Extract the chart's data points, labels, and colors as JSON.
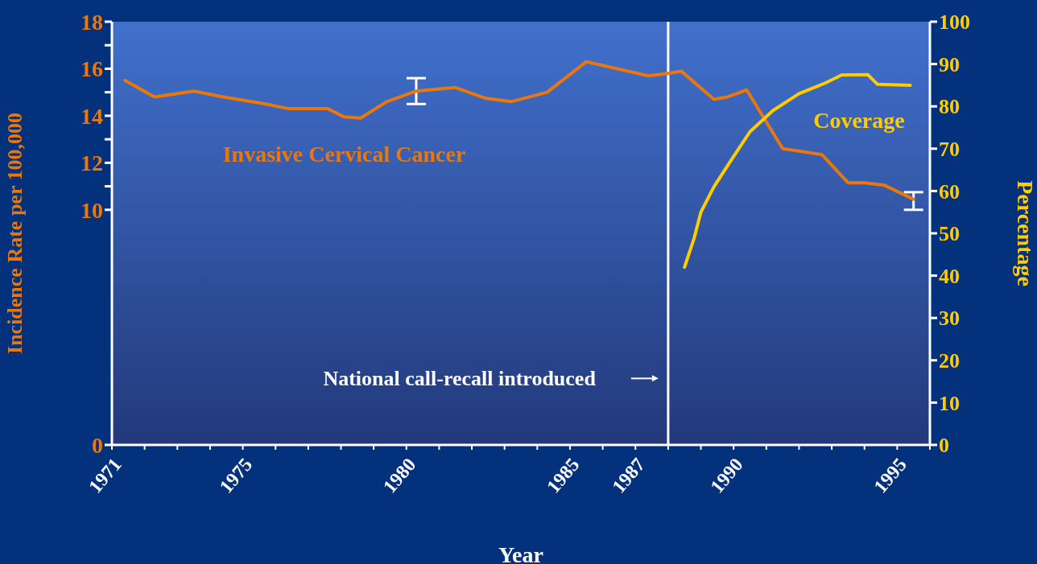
{
  "chart_data": {
    "type": "line",
    "xlabel": "Year",
    "ylabel": "Incidence Rate per 100,000",
    "y2label": "Percentage",
    "xlim": [
      1971,
      1996
    ],
    "xticks": [
      1971,
      {
        "value": 1972,
        "label": null
      },
      {
        "value": 1973,
        "label": null
      },
      {
        "value": 1974,
        "label": null
      },
      1975,
      {
        "value": 1976,
        "label": null
      },
      {
        "value": 1977,
        "label": null
      },
      {
        "value": 1978,
        "label": null
      },
      {
        "value": 1979,
        "label": null
      },
      1980,
      {
        "value": 1981,
        "label": null
      },
      {
        "value": 1982,
        "label": null
      },
      {
        "value": 1983,
        "label": null
      },
      {
        "value": 1984,
        "label": null
      },
      1985,
      {
        "value": 1986,
        "label": null
      },
      1987,
      {
        "value": 1988,
        "label": null
      },
      {
        "value": 1989,
        "label": null
      },
      1990,
      {
        "value": 1991,
        "label": null
      },
      {
        "value": 1992,
        "label": null
      },
      {
        "value": 1993,
        "label": null
      },
      {
        "value": 1994,
        "label": null
      },
      1995,
      {
        "value": 1996,
        "label": null
      }
    ],
    "ylim": [
      0,
      18
    ],
    "yticks": [
      0,
      10,
      {
        "value": 11,
        "label": null
      },
      12,
      {
        "value": 13,
        "label": null
      },
      14,
      {
        "value": 15,
        "label": null
      },
      16,
      {
        "value": 17,
        "label": null
      },
      18
    ],
    "y2lim": [
      0,
      100
    ],
    "y2ticks": [
      0,
      10,
      20,
      30,
      40,
      50,
      60,
      70,
      80,
      90,
      100
    ],
    "grid": false,
    "legend": false,
    "marker": "none",
    "line_style": "solid",
    "series": [
      {
        "name": "Invasive Cervical Cancer",
        "color": "#e8780e",
        "x": [
          1971.4,
          1972.3,
          1973.5,
          1974.4,
          1975.7,
          1976.4,
          1977.6,
          1978.1,
          1978.6,
          1979.4,
          1980.3,
          1981.5,
          1982.4,
          1983.2,
          1984.3,
          1985.5,
          1987.4,
          1988.0,
          1988.4,
          1989.4,
          1989.8,
          1990.4,
          1991.5,
          1992.0,
          1992.7,
          1993.5,
          1994.0,
          1994.6,
          1995.5
        ],
        "values": [
          15.5,
          14.8,
          15.05,
          14.8,
          14.5,
          14.3,
          14.3,
          13.95,
          13.9,
          14.6,
          15.05,
          15.2,
          14.75,
          14.6,
          15.0,
          16.3,
          15.7,
          15.8,
          15.9,
          14.7,
          14.8,
          15.1,
          12.6,
          12.5,
          12.35,
          11.15,
          11.15,
          11.05,
          10.45
        ],
        "errors": [
          null,
          null,
          null,
          null,
          null,
          null,
          null,
          null,
          null,
          null,
          [
            14.5,
            15.6
          ],
          null,
          null,
          null,
          null,
          null,
          null,
          null,
          null,
          null,
          null,
          null,
          null,
          null,
          null,
          null,
          null,
          null,
          [
            10.0,
            10.75
          ]
        ]
      },
      {
        "name": "Coverage",
        "color": "#ffcc00",
        "axis": "y2",
        "x": [
          1988.5,
          1988.8,
          1989.0,
          1989.4,
          1989.9,
          1990.5,
          1991.2,
          1992.0,
          1992.8,
          1993.3,
          1994.1,
          1994.4,
          1995.4
        ],
        "values": [
          42,
          49,
          55,
          61,
          67,
          74,
          79,
          83,
          85.5,
          87.4,
          87.5,
          85.2,
          85
        ]
      }
    ],
    "ref_lines": [
      {
        "axis": "x",
        "value": 1988,
        "color": "#ffffff",
        "label": "National call-recall introduced"
      }
    ]
  }
}
